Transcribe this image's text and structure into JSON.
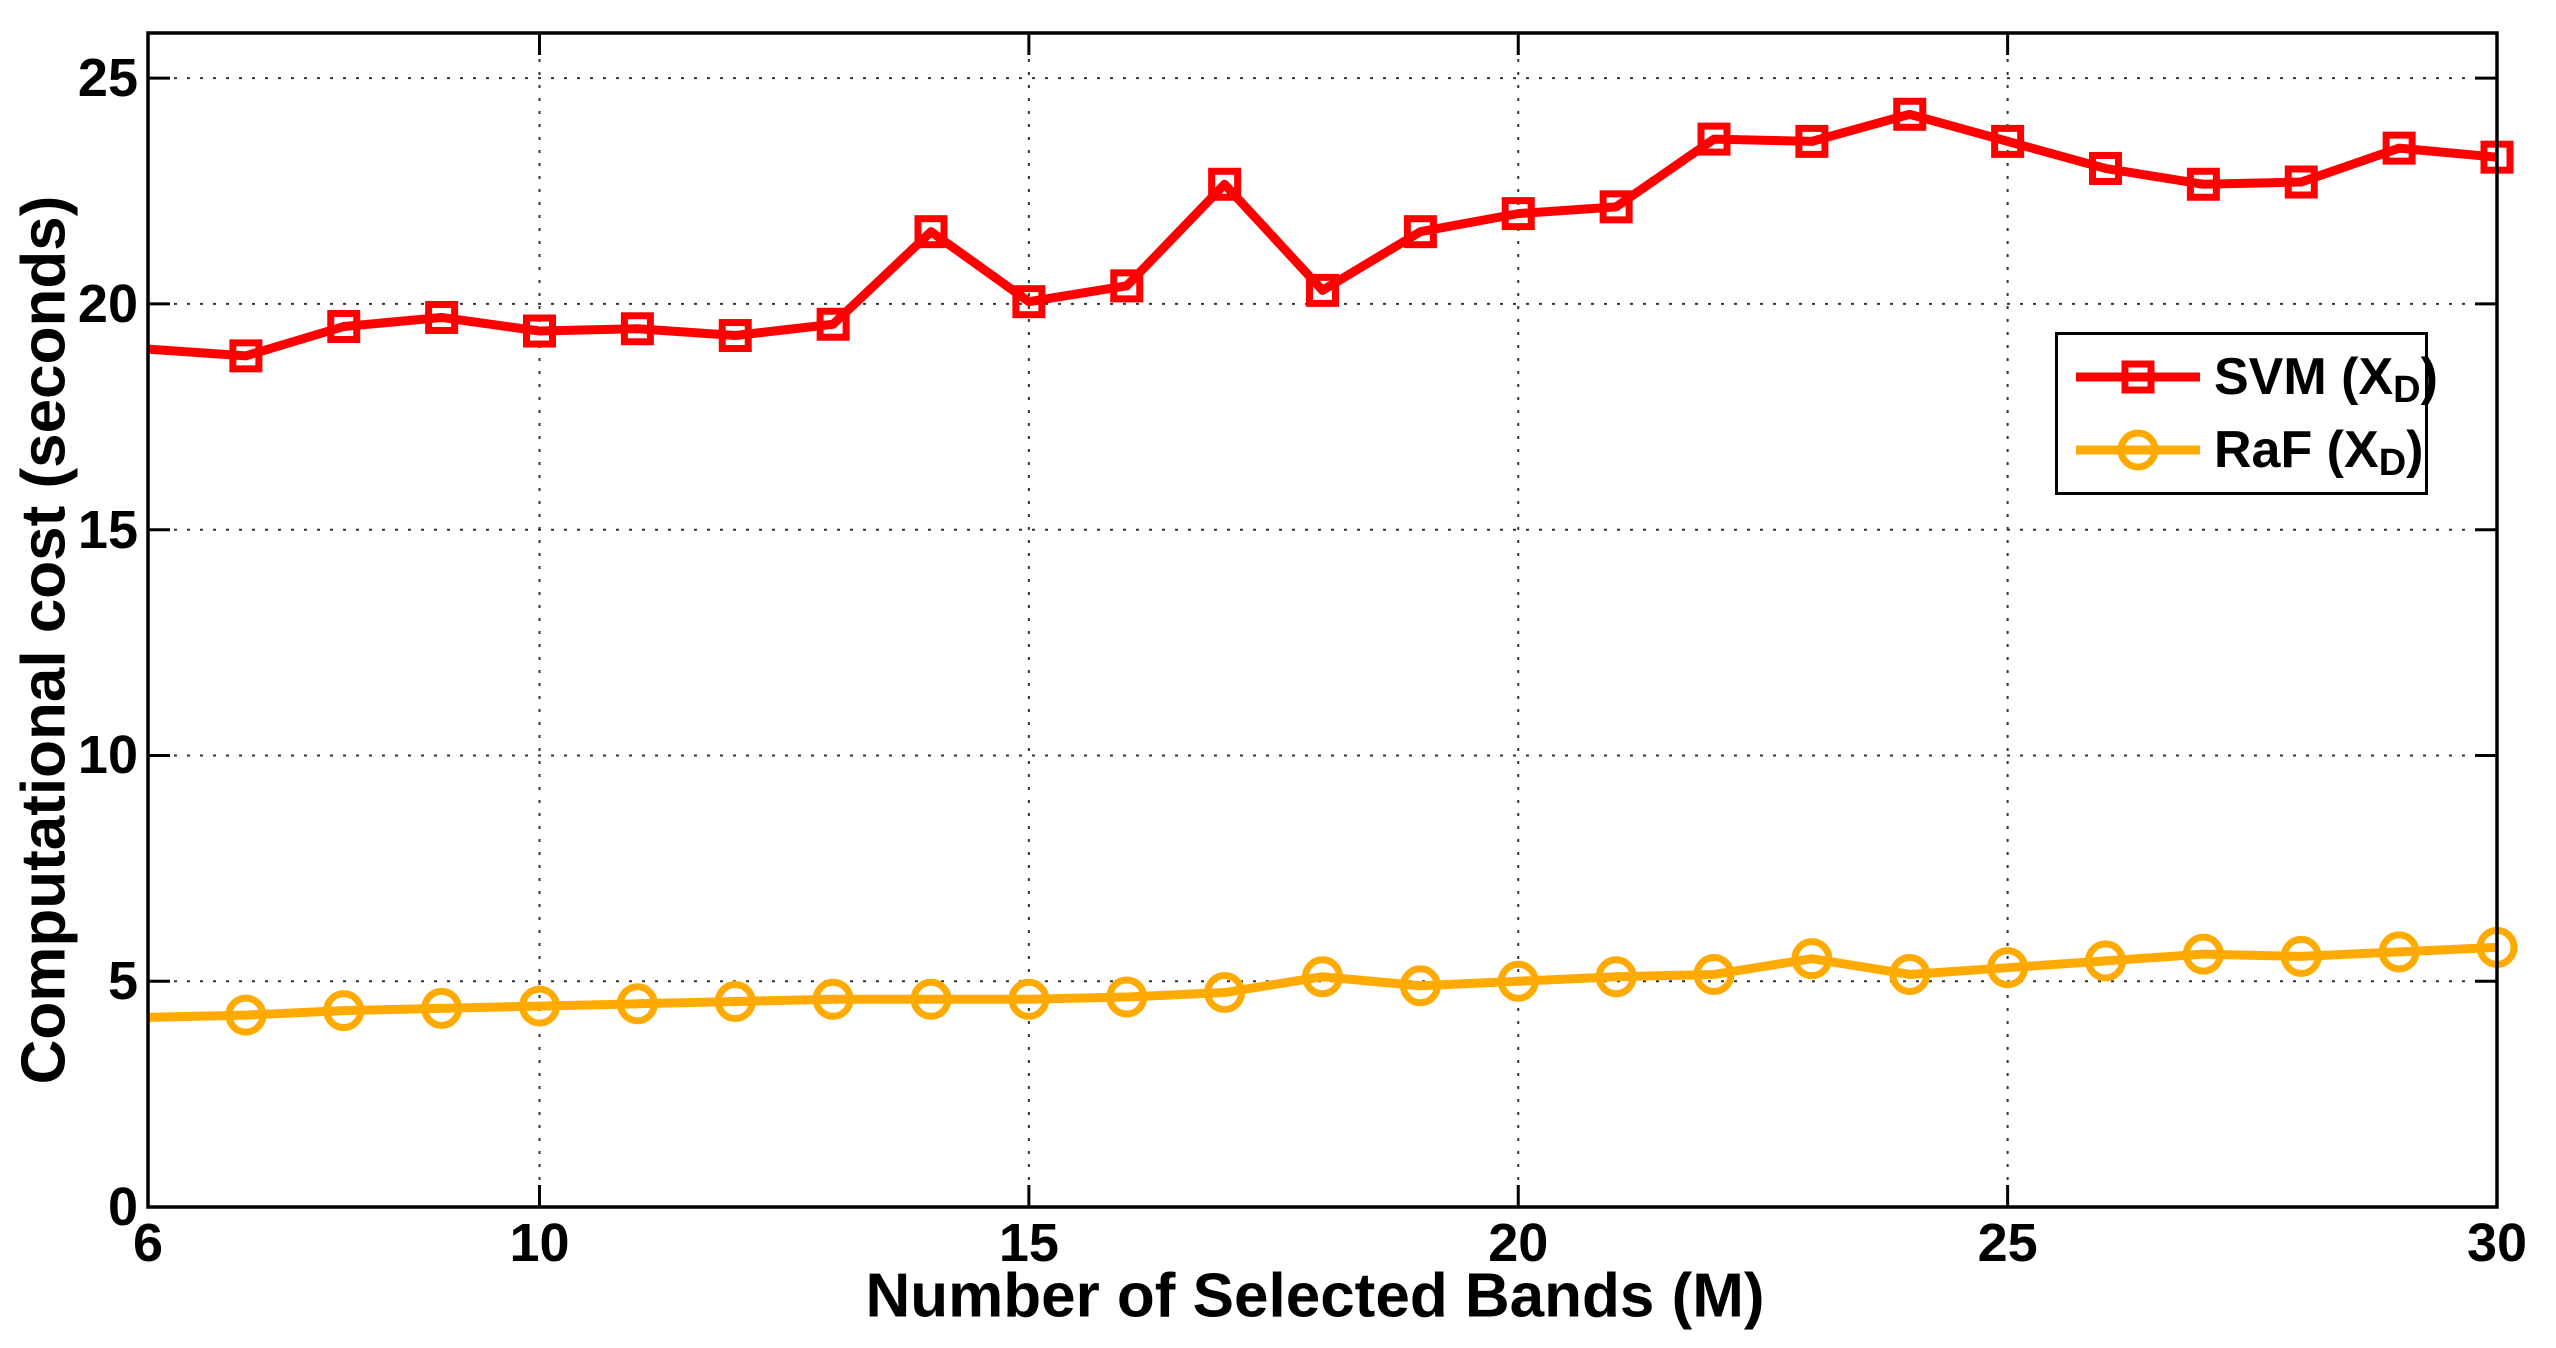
{
  "figure": {
    "background": "#ffffff",
    "axis_color": "#000000",
    "grid_color": "#333333",
    "x_axis": {
      "ticks": [
        6,
        10,
        15,
        20,
        25,
        30
      ]
    },
    "y_axis": {
      "ticks": [
        0,
        5,
        10,
        15,
        20,
        25
      ]
    },
    "legend": [
      {
        "prefix": "SVM (",
        "arg": "X",
        "sub": "D",
        "suffix": ")",
        "color": "#ff0000",
        "marker": "square"
      },
      {
        "prefix": "RaF (",
        "arg": "X",
        "sub": "D",
        "suffix": ")",
        "color": "#ffaa00",
        "marker": "circle"
      }
    ]
  },
  "chart_data": {
    "type": "line",
    "title": "",
    "xlabel": "Number of Selected Bands (M)",
    "ylabel": "Computational cost (seconds)",
    "xlim": [
      6,
      30
    ],
    "ylim": [
      0,
      26
    ],
    "grid": "dotted",
    "legend_position": "upper right",
    "x": [
      6,
      7,
      8,
      9,
      10,
      11,
      12,
      13,
      14,
      15,
      16,
      17,
      18,
      19,
      20,
      21,
      22,
      23,
      24,
      25,
      26,
      27,
      28,
      29,
      30
    ],
    "series": [
      {
        "name": "SVM (X_D)",
        "color": "#ff0000",
        "marker": "square",
        "values": [
          19.0,
          18.85,
          19.5,
          19.7,
          19.4,
          19.45,
          19.3,
          19.55,
          21.6,
          20.05,
          20.4,
          22.65,
          20.3,
          21.6,
          22.0,
          22.15,
          23.65,
          23.6,
          24.2,
          23.6,
          23.0,
          22.65,
          22.7,
          23.45,
          23.25
        ]
      },
      {
        "name": "RaF (X_D)",
        "color": "#ffaa00",
        "marker": "circle",
        "values": [
          4.2,
          4.25,
          4.35,
          4.4,
          4.45,
          4.5,
          4.55,
          4.6,
          4.6,
          4.6,
          4.65,
          4.75,
          5.1,
          4.9,
          5.0,
          5.1,
          5.15,
          5.5,
          5.15,
          5.3,
          5.45,
          5.6,
          5.55,
          5.65,
          5.75
        ]
      }
    ]
  }
}
